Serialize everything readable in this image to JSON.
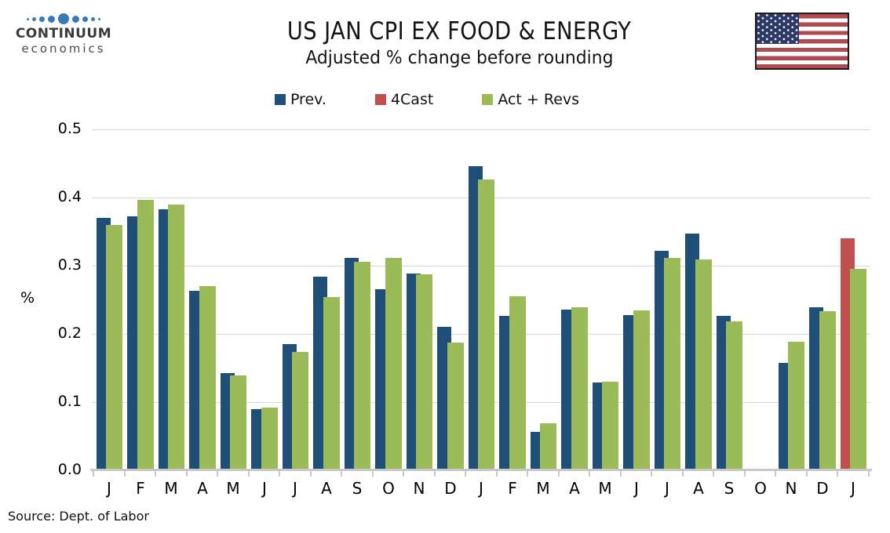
{
  "header": {
    "logo": {
      "line1": "CONTINUUM",
      "line2": "economics",
      "dot_color": "#3879B6"
    },
    "title": "US JAN CPI EX FOOD & ENERGY",
    "subtitle": "Adjusted % change before rounding",
    "flag": "us-flag"
  },
  "legend": [
    {
      "label": "Prev.",
      "color": "#1F4E79"
    },
    {
      "label": "4Cast",
      "color": "#C0504D"
    },
    {
      "label": "Act + Revs",
      "color": "#9BBB59"
    }
  ],
  "chart_data": {
    "type": "bar",
    "title": "US JAN CPI EX FOOD & ENERGY",
    "subtitle": "Adjusted % change before rounding",
    "xlabel": "",
    "ylabel": "%",
    "ylim": [
      0,
      0.5
    ],
    "yticks": [
      0.0,
      0.1,
      0.2,
      0.3,
      0.4,
      0.5
    ],
    "ytick_labels": [
      "0.0",
      "0.1",
      "0.2",
      "0.3",
      "0.4",
      "0.5"
    ],
    "grid": true,
    "legend_position": "top",
    "categories": [
      "J",
      "F",
      "M",
      "A",
      "M",
      "J",
      "J",
      "A",
      "S",
      "O",
      "N",
      "D",
      "J",
      "F",
      "M",
      "A",
      "M",
      "J",
      "J",
      "A",
      "S",
      "O",
      "N",
      "D",
      "J"
    ],
    "series": [
      {
        "name": "Prev.",
        "color": "#1F4E79",
        "values": [
          0.37,
          0.372,
          0.383,
          0.263,
          0.143,
          0.09,
          0.185,
          0.284,
          0.312,
          0.265,
          0.289,
          0.21,
          0.446,
          0.226,
          0.056,
          0.236,
          0.129,
          0.228,
          0.322,
          0.347,
          0.227,
          null,
          0.158,
          0.239,
          null
        ]
      },
      {
        "name": "4Cast",
        "color": "#C0504D",
        "values": [
          null,
          null,
          null,
          null,
          null,
          null,
          null,
          null,
          null,
          null,
          null,
          null,
          null,
          null,
          null,
          null,
          null,
          null,
          null,
          null,
          null,
          null,
          null,
          null,
          0.34
        ]
      },
      {
        "name": "Act + Revs",
        "color": "#9BBB59",
        "values": [
          0.36,
          0.396,
          0.39,
          0.27,
          0.139,
          0.092,
          0.173,
          0.254,
          0.306,
          0.311,
          0.287,
          0.187,
          0.427,
          0.255,
          0.069,
          0.239,
          0.13,
          0.234,
          0.312,
          0.309,
          0.218,
          null,
          0.189,
          0.233,
          0.295
        ]
      }
    ]
  },
  "footer": {
    "source": "Source: Dept. of Labor"
  }
}
